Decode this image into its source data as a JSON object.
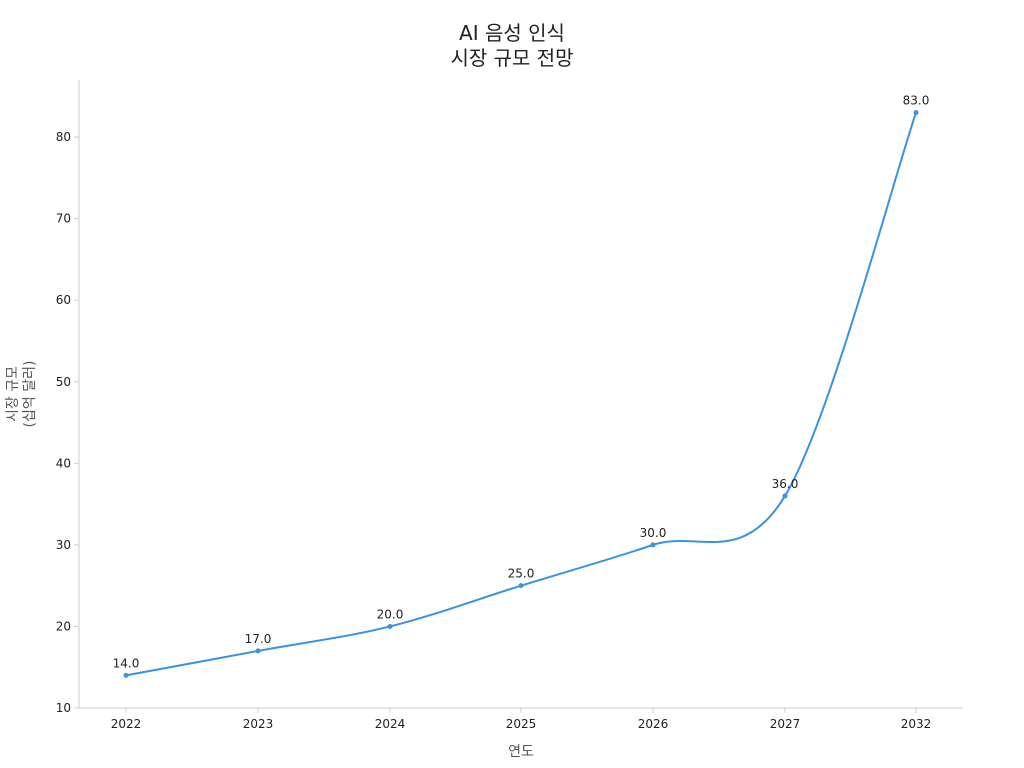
{
  "chart_data": {
    "type": "line",
    "title": "AI 음성 인식\n시장 규모 전망",
    "xlabel": "연도",
    "ylabel": "시장 규모\n(십억 달러)",
    "categories": [
      "2022",
      "2023",
      "2024",
      "2025",
      "2026",
      "2027",
      "2032"
    ],
    "series": [
      {
        "values": [
          14.0,
          17.0,
          20.0,
          25.0,
          30.0,
          36.0,
          83.0
        ],
        "data_labels": [
          "14.0",
          "17.0",
          "20.0",
          "25.0",
          "30.0",
          "36.0",
          "83.0"
        ]
      }
    ],
    "ylim": [
      10,
      87
    ],
    "yticks": [
      10,
      20,
      30,
      40,
      50,
      60,
      70,
      80
    ],
    "grid": false,
    "legend": "none",
    "colors": {
      "line": "#3a92e0",
      "marker": "#3a92e0"
    }
  }
}
